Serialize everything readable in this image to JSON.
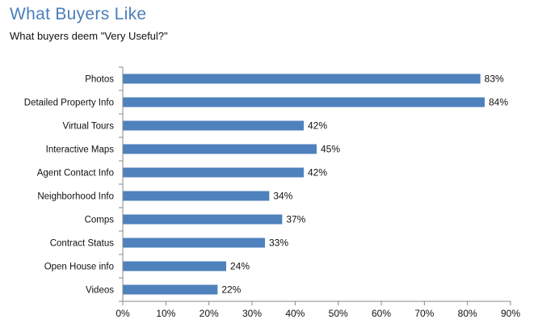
{
  "title": "What Buyers Like",
  "subtitle": "What buyers deem \"Very Useful?\"",
  "colors": {
    "bar": "#4f81bd",
    "title": "#4a7ebb",
    "axis": "#888888"
  },
  "chart_data": {
    "type": "bar",
    "orientation": "horizontal",
    "categories": [
      "Photos",
      "Detailed Property Info",
      "Virtual Tours",
      "Interactive Maps",
      "Agent Contact Info",
      "Neighborhood Info",
      "Comps",
      "Contract Status",
      "Open House info",
      "Videos"
    ],
    "values": [
      83,
      84,
      42,
      45,
      42,
      34,
      37,
      33,
      24,
      22
    ],
    "value_labels": [
      "83%",
      "84%",
      "42%",
      "45%",
      "42%",
      "34%",
      "37%",
      "33%",
      "24%",
      "22%"
    ],
    "xlim": [
      0,
      90
    ],
    "xticks": [
      "0%",
      "10%",
      "20%",
      "30%",
      "40%",
      "50%",
      "60%",
      "70%",
      "80%",
      "90%"
    ],
    "grid": false,
    "legend": "none"
  }
}
